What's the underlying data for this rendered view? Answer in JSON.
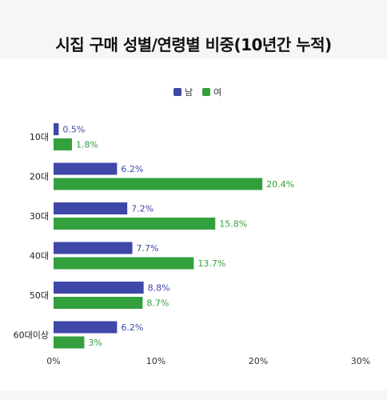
{
  "chart_data": {
    "type": "bar",
    "orientation": "horizontal",
    "title": "시집 구매 성별/연령별 비중(10년간 누적)",
    "categories": [
      "10대",
      "20대",
      "30대",
      "40대",
      "50대",
      "60대이상"
    ],
    "series": [
      {
        "name": "남",
        "color": "#3f48a8",
        "values": [
          0.5,
          6.2,
          7.2,
          7.7,
          8.8,
          6.2
        ],
        "labels": [
          "0.5%",
          "6.2%",
          "7.2%",
          "7.7%",
          "8.8%",
          "6.2%"
        ]
      },
      {
        "name": "여",
        "color": "#33a03d",
        "values": [
          1.8,
          20.4,
          15.8,
          13.7,
          8.7,
          3
        ],
        "labels": [
          "1.8%",
          "20.4%",
          "15.8%",
          "13.7%",
          "8.7%",
          "3%"
        ]
      }
    ],
    "xlim": [
      0,
      30
    ],
    "xticks": [
      0,
      10,
      20,
      30
    ],
    "xtick_labels": [
      "0%",
      "10%",
      "20%",
      "30%"
    ],
    "legend_position": "top-center",
    "grid": false
  }
}
